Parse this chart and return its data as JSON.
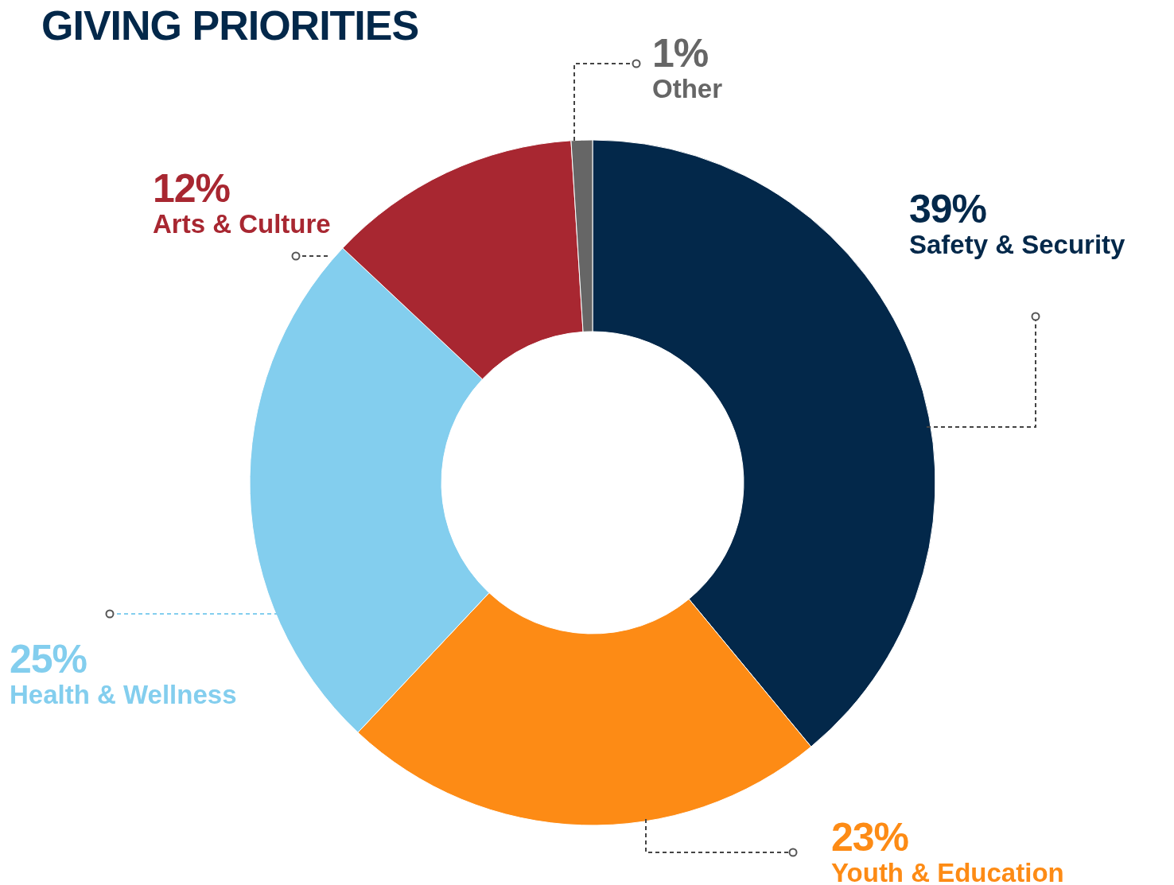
{
  "chart_data": {
    "type": "donut",
    "title": "GIVING PRIORITIES",
    "categories": [
      "Safety & Security",
      "Youth & Education",
      "Health & Wellness",
      "Arts & Culture",
      "Other"
    ],
    "values": [
      39,
      23,
      25,
      12,
      1
    ],
    "colors": [
      "#03284a",
      "#fd8b15",
      "#83ceee",
      "#a82731",
      "#666666"
    ],
    "value_labels": [
      "39%",
      "23%",
      "25%",
      "12%",
      "1%"
    ],
    "legend": false
  }
}
